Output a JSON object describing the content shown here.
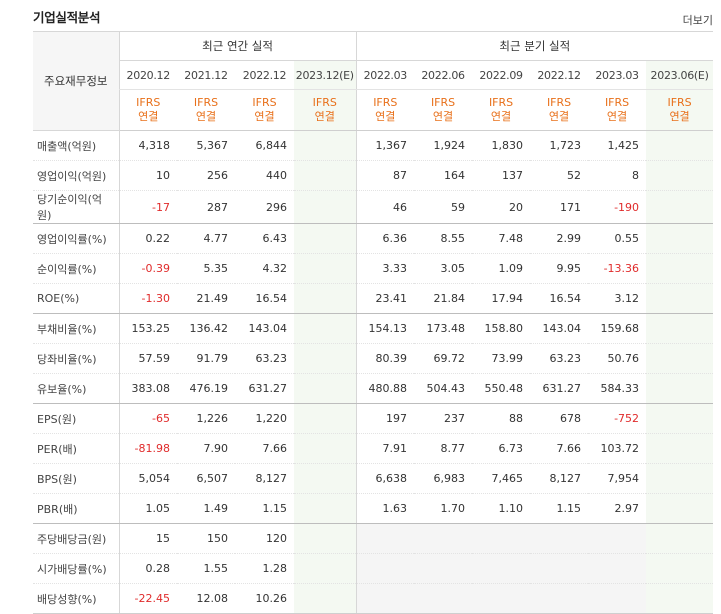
{
  "header": {
    "title": "기업실적분석",
    "more_label": "더보기"
  },
  "table": {
    "row_header": "주요재무정보",
    "group_annual": "최근 연간 실적",
    "group_quarter": "최근 분기 실적",
    "annual_periods": [
      "2020.12",
      "2021.12",
      "2022.12",
      "2023.12(E)"
    ],
    "quarter_periods": [
      "2022.03",
      "2022.06",
      "2022.09",
      "2022.12",
      "2023.03",
      "2023.06(E)"
    ],
    "basis_line1": "IFRS",
    "basis_line2": "연결",
    "rows": [
      {
        "label": "매출액(억원)",
        "annual": [
          "4,318",
          "5,367",
          "6,844",
          ""
        ],
        "quarter": [
          "1,367",
          "1,924",
          "1,830",
          "1,723",
          "1,425",
          ""
        ]
      },
      {
        "label": "영업이익(억원)",
        "annual": [
          "10",
          "256",
          "440",
          ""
        ],
        "quarter": [
          "87",
          "164",
          "137",
          "52",
          "8",
          ""
        ]
      },
      {
        "label": "당기순이익(억원)",
        "annual": [
          "-17",
          "287",
          "296",
          ""
        ],
        "quarter": [
          "46",
          "59",
          "20",
          "171",
          "-190",
          ""
        ]
      },
      {
        "label": "영업이익률(%)",
        "annual": [
          "0.22",
          "4.77",
          "6.43",
          ""
        ],
        "quarter": [
          "6.36",
          "8.55",
          "7.48",
          "2.99",
          "0.55",
          ""
        ]
      },
      {
        "label": "순이익률(%)",
        "annual": [
          "-0.39",
          "5.35",
          "4.32",
          ""
        ],
        "quarter": [
          "3.33",
          "3.05",
          "1.09",
          "9.95",
          "-13.36",
          ""
        ]
      },
      {
        "label": "ROE(%)",
        "annual": [
          "-1.30",
          "21.49",
          "16.54",
          ""
        ],
        "quarter": [
          "23.41",
          "21.84",
          "17.94",
          "16.54",
          "3.12",
          ""
        ]
      },
      {
        "label": "부채비율(%)",
        "annual": [
          "153.25",
          "136.42",
          "143.04",
          ""
        ],
        "quarter": [
          "154.13",
          "173.48",
          "158.80",
          "143.04",
          "159.68",
          ""
        ]
      },
      {
        "label": "당좌비율(%)",
        "annual": [
          "57.59",
          "91.79",
          "63.23",
          ""
        ],
        "quarter": [
          "80.39",
          "69.72",
          "73.99",
          "63.23",
          "50.76",
          ""
        ]
      },
      {
        "label": "유보율(%)",
        "annual": [
          "383.08",
          "476.19",
          "631.27",
          ""
        ],
        "quarter": [
          "480.88",
          "504.43",
          "550.48",
          "631.27",
          "584.33",
          ""
        ]
      },
      {
        "label": "EPS(원)",
        "annual": [
          "-65",
          "1,226",
          "1,220",
          ""
        ],
        "quarter": [
          "197",
          "237",
          "88",
          "678",
          "-752",
          ""
        ]
      },
      {
        "label": "PER(배)",
        "annual": [
          "-81.98",
          "7.90",
          "7.66",
          ""
        ],
        "quarter": [
          "7.91",
          "8.77",
          "6.73",
          "7.66",
          "103.72",
          ""
        ]
      },
      {
        "label": "BPS(원)",
        "annual": [
          "5,054",
          "6,507",
          "8,127",
          ""
        ],
        "quarter": [
          "6,638",
          "6,983",
          "7,465",
          "8,127",
          "7,954",
          ""
        ]
      },
      {
        "label": "PBR(배)",
        "annual": [
          "1.05",
          "1.49",
          "1.15",
          ""
        ],
        "quarter": [
          "1.63",
          "1.70",
          "1.10",
          "1.15",
          "2.97",
          ""
        ]
      },
      {
        "label": "주당배당금(원)",
        "annual": [
          "15",
          "150",
          "120",
          ""
        ],
        "quarter": [
          "",
          "",
          "",
          "",
          "",
          ""
        ]
      },
      {
        "label": "시가배당률(%)",
        "annual": [
          "0.28",
          "1.55",
          "1.28",
          ""
        ],
        "quarter": [
          "",
          "",
          "",
          "",
          "",
          ""
        ]
      },
      {
        "label": "배당성향(%)",
        "annual": [
          "-22.45",
          "12.08",
          "10.26",
          ""
        ],
        "quarter": [
          "",
          "",
          "",
          "",
          "",
          ""
        ]
      }
    ]
  }
}
